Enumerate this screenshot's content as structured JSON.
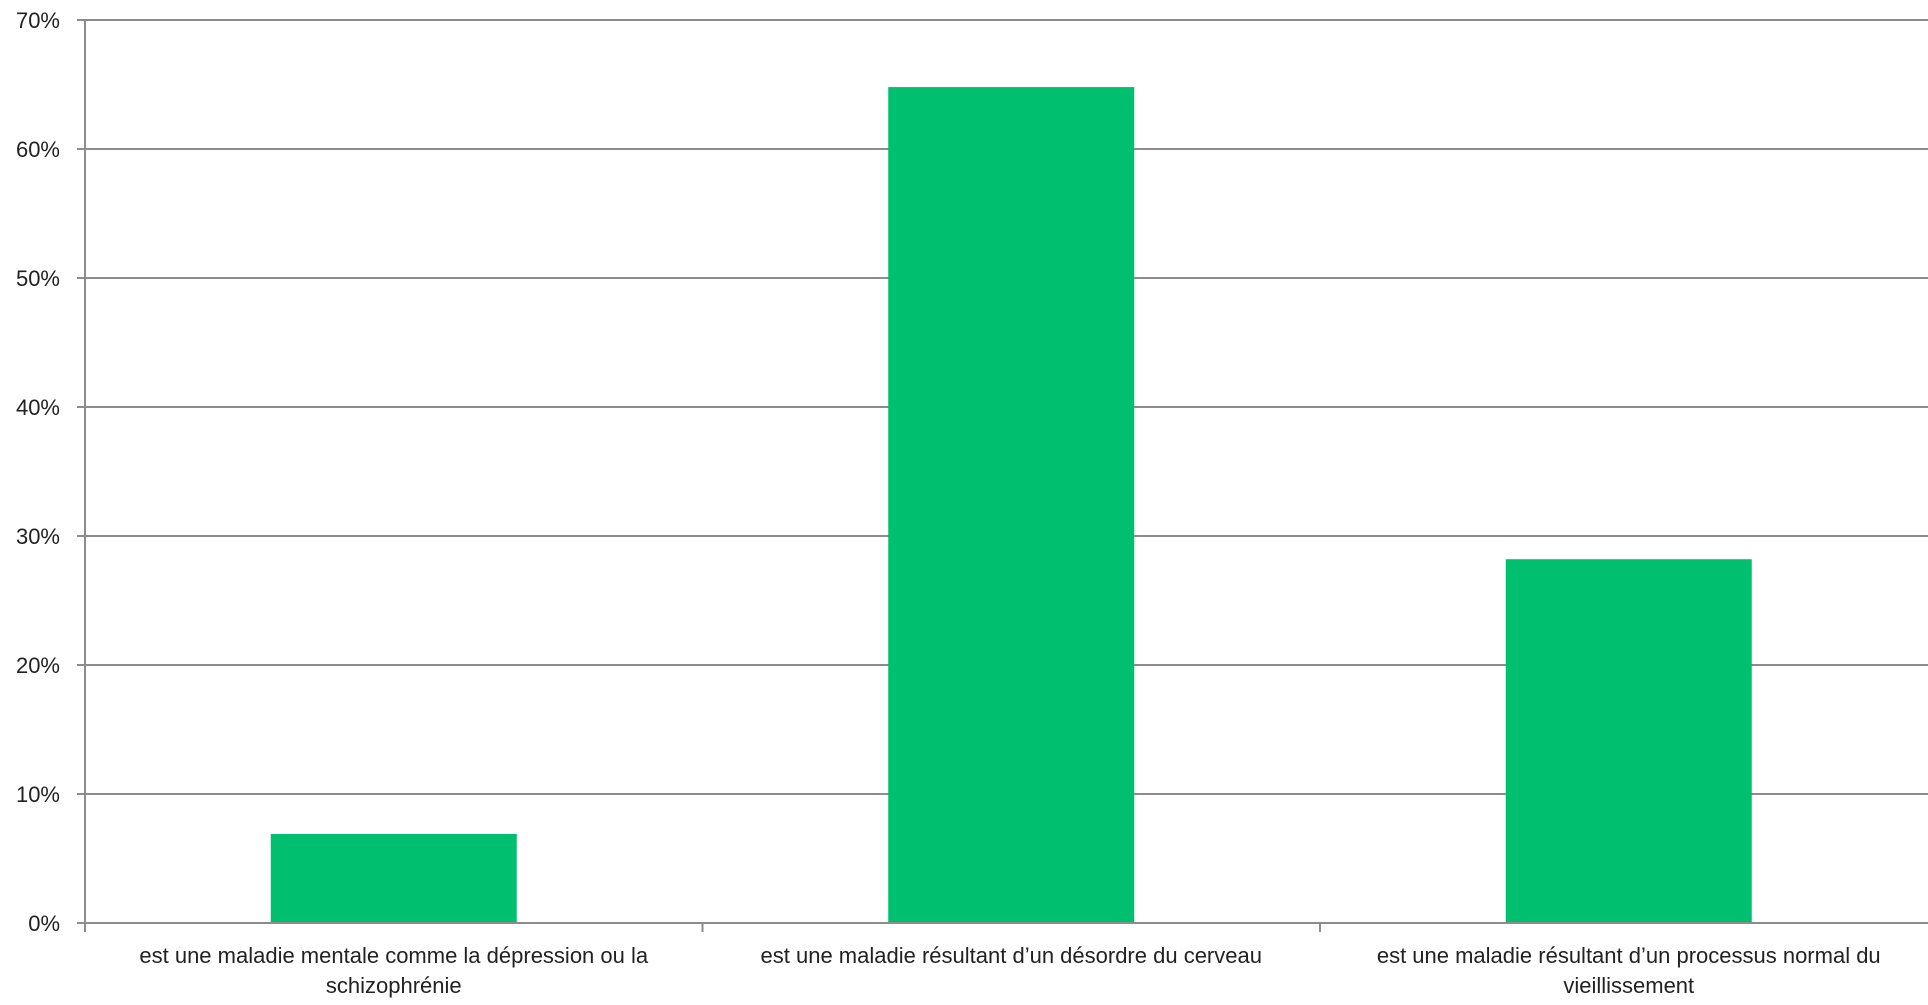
{
  "chart_data": {
    "type": "bar",
    "title": "",
    "xlabel": "",
    "ylabel": "",
    "categories": [
      "est une maladie mentale comme la dépression ou la schizophrénie",
      "est une maladie résultant d’un désordre du cerveau",
      "est une maladie résultant d’un processus normal du vieillissement"
    ],
    "values": [
      6.9,
      64.8,
      28.2
    ],
    "value_unit": "%",
    "ylim": [
      0,
      70
    ],
    "y_ticks": [
      {
        "value": 0,
        "label": "0%"
      },
      {
        "value": 10,
        "label": "10%"
      },
      {
        "value": 20,
        "label": "20%"
      },
      {
        "value": 30,
        "label": "30%"
      },
      {
        "value": 40,
        "label": "40%"
      },
      {
        "value": 50,
        "label": "50%"
      },
      {
        "value": 60,
        "label": "60%"
      },
      {
        "value": 70,
        "label": "70%"
      }
    ],
    "bar_color": "#00BF6F",
    "grid_color": "#8C8C8C",
    "grid": true,
    "legend": "none"
  }
}
